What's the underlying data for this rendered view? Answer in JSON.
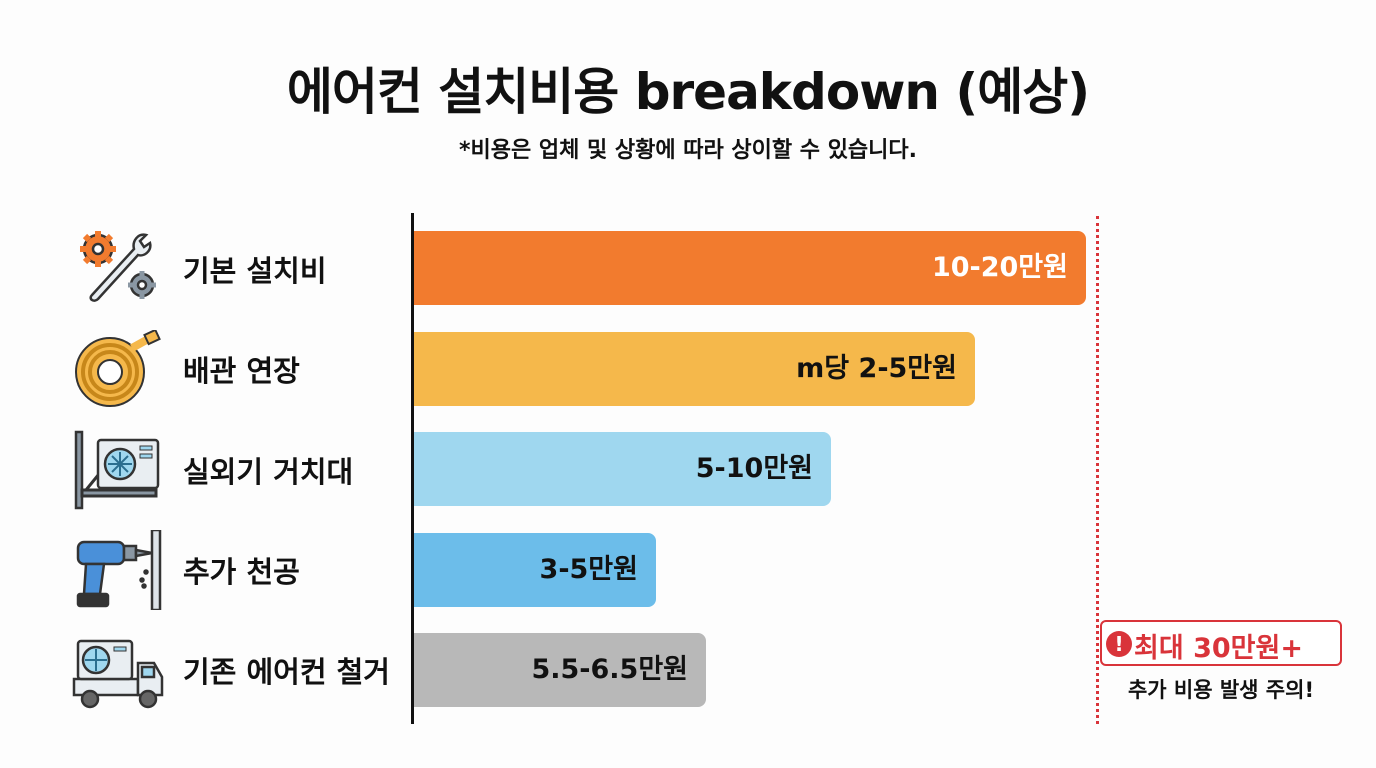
{
  "chart_data": {
    "type": "bar",
    "orientation": "horizontal",
    "title": "에어컨 설치비용 breakdown (예상)",
    "subtitle": "*비용은 업체 및 상황에 따라 상이할 수 있습니다.",
    "unit": "만원",
    "xlim": [
      0,
      21
    ],
    "categories": [
      "기본 설치비",
      "배관 연장",
      "실외기 거치대",
      "추가 천공",
      "기존 에어컨 철거"
    ],
    "values": [
      20,
      16.7,
      12.4,
      7.2,
      8.7
    ],
    "value_labels": [
      "10-20만원",
      "m당 2-5만원",
      "5-10만원",
      "3-5만원",
      "5.5-6.5만원"
    ],
    "colors": [
      "#f27b2e",
      "#f5b84b",
      "#9fd7ef",
      "#6cbdea",
      "#b8b8b8"
    ],
    "label_colors": [
      "#ffffff",
      "#111111",
      "#111111",
      "#111111",
      "#111111"
    ],
    "icons": [
      "gears-wrench-icon",
      "hose-coil-icon",
      "outdoor-unit-bracket-icon",
      "drill-icon",
      "truck-ac-icon"
    ],
    "max_line": {
      "value": 20.3,
      "label": "최대 30만원+",
      "note": "추가 비용 발생 주의!",
      "color": "#d9343a"
    }
  }
}
